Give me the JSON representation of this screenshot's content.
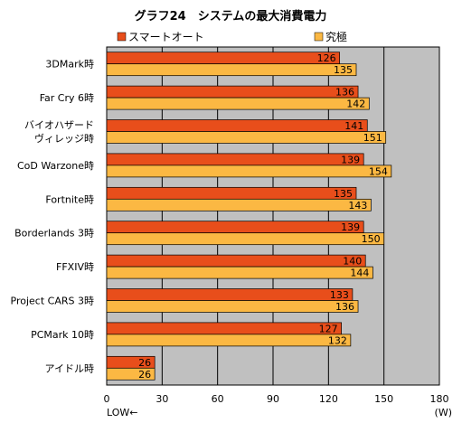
{
  "chart_data": {
    "type": "bar",
    "orientation": "horizontal",
    "title": "グラフ24　システムの最大消費電力",
    "categories": [
      "3DMark時",
      "Far Cry 6時",
      "バイオハザード\nヴィレッジ時",
      "CoD Warzone時",
      "Fortnite時",
      "Borderlands 3時",
      "FFXIV時",
      "Project CARS 3時",
      "PCMark 10時",
      "アイドル時"
    ],
    "series": [
      {
        "name": "スマートオート",
        "color": "#e84e1b",
        "values": [
          126,
          136,
          141,
          139,
          135,
          139,
          140,
          133,
          127,
          26
        ]
      },
      {
        "name": "究極",
        "color": "#fbb843",
        "values": [
          135,
          142,
          151,
          154,
          143,
          150,
          144,
          136,
          132,
          26
        ]
      }
    ],
    "xlim": [
      0,
      180
    ],
    "xticks": [
      0,
      30,
      60,
      90,
      120,
      150,
      180
    ],
    "xlabel_left": "LOW←",
    "xlabel_right": "(W)",
    "legend_position": "top",
    "grid": true,
    "plot_background": "#c0c0c0"
  }
}
